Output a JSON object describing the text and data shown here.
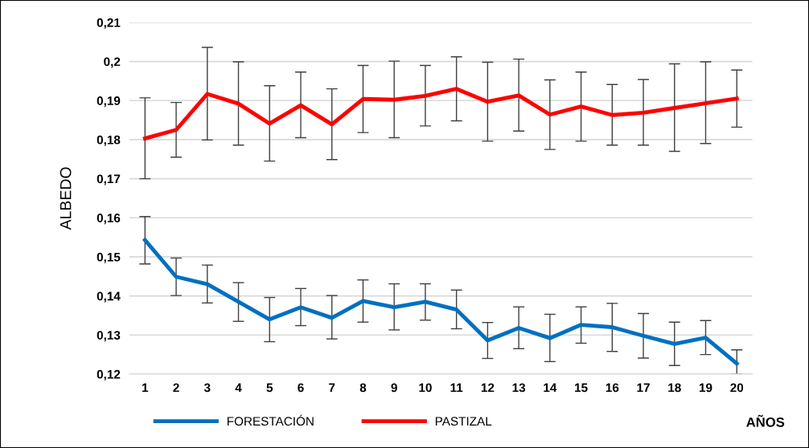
{
  "chart_data": {
    "type": "line",
    "ylabel": "ALBEDO",
    "xlabel": "AÑOS",
    "categories": [
      "1",
      "2",
      "3",
      "4",
      "5",
      "6",
      "7",
      "8",
      "9",
      "10",
      "11",
      "12",
      "13",
      "14",
      "15",
      "16",
      "17",
      "18",
      "19",
      "20"
    ],
    "series": [
      {
        "name": "FORESTACIÓN",
        "color": "#0070c0",
        "values": [
          0.1543,
          0.1449,
          0.143,
          0.1385,
          0.134,
          0.1371,
          0.1344,
          0.1387,
          0.1371,
          0.1385,
          0.1365,
          0.1286,
          0.1318,
          0.1292,
          0.1326,
          0.132,
          0.1298,
          0.1277,
          0.1293,
          0.1227
        ],
        "errors": [
          [
            0.1482,
            0.1603
          ],
          [
            0.1401,
            0.1497
          ],
          [
            0.1382,
            0.1479
          ],
          [
            0.1335,
            0.1434
          ],
          [
            0.1283,
            0.1396
          ],
          [
            0.1324,
            0.1419
          ],
          [
            0.129,
            0.1401
          ],
          [
            0.1333,
            0.1441
          ],
          [
            0.1313,
            0.1431
          ],
          [
            0.1338,
            0.1431
          ],
          [
            0.1316,
            0.1415
          ],
          [
            0.124,
            0.1332
          ],
          [
            0.1265,
            0.1372
          ],
          [
            0.1232,
            0.1353
          ],
          [
            0.1279,
            0.1372
          ],
          [
            0.1258,
            0.1381
          ],
          [
            0.1241,
            0.1355
          ],
          [
            0.1222,
            0.1333
          ],
          [
            0.125,
            0.1337
          ],
          [
            0.12,
            0.1262
          ]
        ]
      },
      {
        "name": "PASTIZAL",
        "color": "#ff0000",
        "values": [
          0.1803,
          0.1825,
          0.1917,
          0.1892,
          0.1841,
          0.1888,
          0.1839,
          0.1904,
          0.1902,
          0.1912,
          0.193,
          0.1897,
          0.1913,
          0.1864,
          0.1885,
          0.1863,
          0.1869,
          0.1881,
          0.1893,
          0.1905
        ],
        "errors": [
          [
            0.17,
            0.1907
          ],
          [
            0.1755,
            0.1895
          ],
          [
            0.1799,
            0.2036
          ],
          [
            0.1786,
            0.1999
          ],
          [
            0.1745,
            0.1938
          ],
          [
            0.1805,
            0.1973
          ],
          [
            0.1749,
            0.193
          ],
          [
            0.1818,
            0.199
          ],
          [
            0.1805,
            0.2001
          ],
          [
            0.1835,
            0.199
          ],
          [
            0.1848,
            0.2012
          ],
          [
            0.1796,
            0.1998
          ],
          [
            0.1822,
            0.2006
          ],
          [
            0.1775,
            0.1953
          ],
          [
            0.1796,
            0.1973
          ],
          [
            0.1786,
            0.1941
          ],
          [
            0.1786,
            0.1954
          ],
          [
            0.177,
            0.1994
          ],
          [
            0.179,
            0.1999
          ],
          [
            0.1832,
            0.1978
          ]
        ]
      }
    ],
    "ylim": [
      0.12,
      0.21
    ],
    "yticks": [
      {
        "value": 0.12,
        "label": "0,12"
      },
      {
        "value": 0.13,
        "label": "0,13"
      },
      {
        "value": 0.14,
        "label": "0,14"
      },
      {
        "value": 0.15,
        "label": "0,15"
      },
      {
        "value": 0.16,
        "label": "0,16"
      },
      {
        "value": 0.17,
        "label": "0,17"
      },
      {
        "value": 0.18,
        "label": "0,18"
      },
      {
        "value": 0.19,
        "label": "0,19"
      },
      {
        "value": 0.2,
        "label": "0,2"
      },
      {
        "value": 0.21,
        "label": "0,21"
      }
    ],
    "grid": "y",
    "legend": "bottom",
    "marker": "none",
    "line_style": "solid"
  }
}
